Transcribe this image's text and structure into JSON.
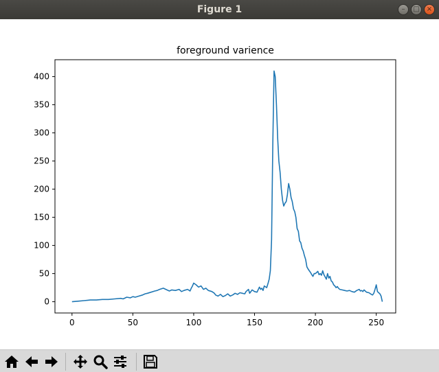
{
  "window": {
    "title": "Figure 1"
  },
  "toolbar": {
    "buttons": [
      {
        "name": "home-icon"
      },
      {
        "name": "back-icon"
      },
      {
        "name": "forward-icon"
      },
      {
        "name": "pan-icon"
      },
      {
        "name": "zoom-icon"
      },
      {
        "name": "configure-subplots-icon"
      },
      {
        "name": "save-icon"
      }
    ]
  },
  "chart_data": {
    "type": "line",
    "title": "foreground varience",
    "xlabel": "",
    "ylabel": "",
    "xlim": [
      -14,
      266
    ],
    "ylim": [
      -20,
      430
    ],
    "xticks": [
      0,
      50,
      100,
      150,
      200,
      250
    ],
    "yticks": [
      0,
      50,
      100,
      150,
      200,
      250,
      300,
      350,
      400
    ],
    "grid": false,
    "color": "#1f77b4",
    "series": [
      {
        "x": [
          0,
          5,
          10,
          15,
          20,
          25,
          30,
          35,
          40,
          42,
          45,
          48,
          50,
          52,
          55,
          58,
          60,
          62,
          65,
          68,
          70,
          72,
          75,
          78,
          80,
          82,
          85,
          88,
          90,
          92,
          95,
          97,
          98,
          99,
          100,
          102,
          104,
          106,
          108,
          110,
          112,
          115,
          117,
          118,
          120,
          122,
          124,
          126,
          128,
          130,
          132,
          134,
          136,
          138,
          140,
          142,
          143,
          144,
          145,
          146,
          148,
          150,
          152,
          154,
          155,
          156,
          157,
          158,
          160,
          161,
          162,
          163,
          164,
          165,
          166,
          167,
          168,
          169,
          170,
          171,
          172,
          173,
          174,
          175,
          176,
          177,
          178,
          179,
          180,
          181,
          182,
          183,
          184,
          185,
          186,
          187,
          188,
          189,
          190,
          191,
          192,
          193,
          194,
          195,
          196,
          197,
          198,
          199,
          200,
          201,
          202,
          203,
          204,
          205,
          206,
          207,
          208,
          209,
          210,
          211,
          212,
          213,
          214,
          215,
          216,
          217,
          218,
          219,
          220,
          222,
          224,
          226,
          228,
          230,
          232,
          234,
          236,
          237,
          238,
          239,
          240,
          242,
          244,
          246,
          247,
          248,
          249,
          250,
          251,
          252,
          253,
          254,
          255
        ],
        "y": [
          0,
          1,
          2,
          3,
          3,
          4,
          4,
          5,
          6,
          5,
          8,
          7,
          9,
          8,
          10,
          12,
          14,
          15,
          17,
          19,
          20,
          22,
          24,
          21,
          19,
          21,
          20,
          22,
          18,
          20,
          22,
          19,
          24,
          28,
          33,
          30,
          26,
          28,
          22,
          24,
          20,
          18,
          15,
          12,
          10,
          13,
          9,
          11,
          14,
          10,
          12,
          15,
          13,
          16,
          15,
          14,
          18,
          20,
          22,
          15,
          21,
          18,
          17,
          26,
          22,
          24,
          20,
          28,
          25,
          32,
          40,
          55,
          110,
          280,
          410,
          400,
          350,
          290,
          250,
          230,
          200,
          180,
          170,
          175,
          178,
          190,
          210,
          200,
          185,
          178,
          165,
          160,
          150,
          130,
          125,
          108,
          105,
          95,
          90,
          82,
          75,
          62,
          58,
          55,
          52,
          48,
          45,
          50,
          50,
          52,
          54,
          48,
          50,
          47,
          55,
          48,
          44,
          40,
          50,
          42,
          45,
          37,
          35,
          30,
          28,
          25,
          27,
          24,
          22,
          21,
          20,
          19,
          20,
          18,
          17,
          20,
          22,
          19,
          20,
          18,
          21,
          17,
          16,
          13,
          12,
          15,
          22,
          30,
          18,
          16,
          14,
          10,
          0
        ]
      }
    ]
  }
}
